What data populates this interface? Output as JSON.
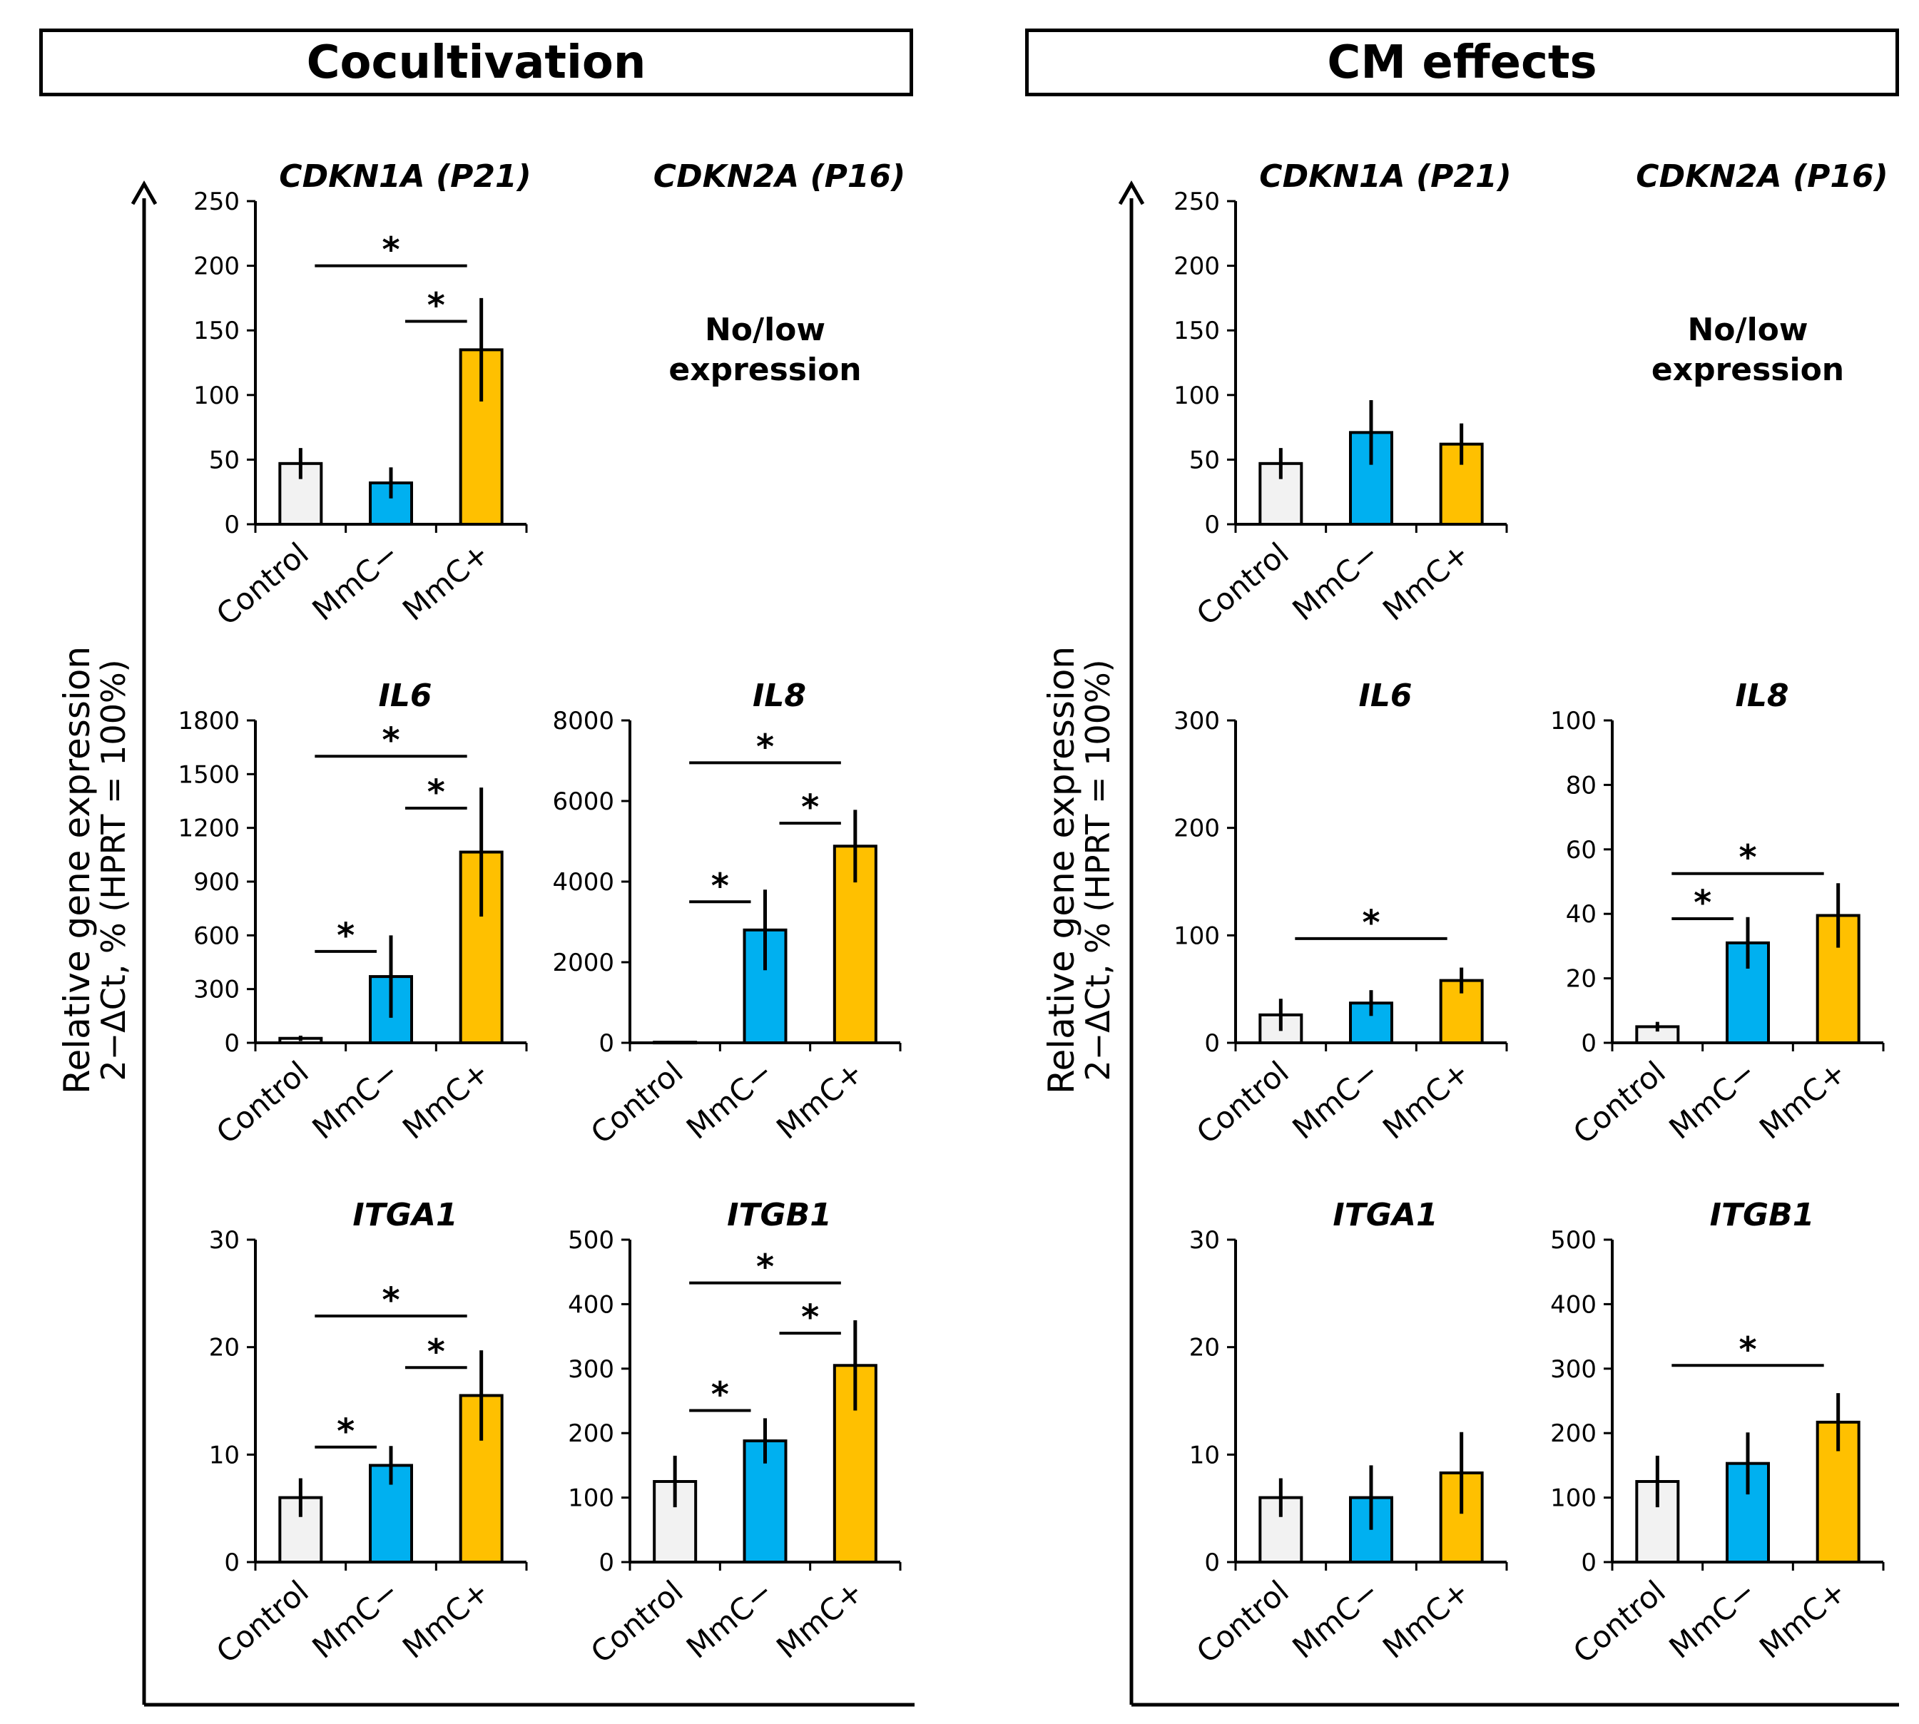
{
  "colors": {
    "control": "#f2f2f2",
    "mmc_minus": "#00b0f0",
    "mmc_plus": "#ffc000",
    "stroke": "#000000"
  },
  "panels": [
    {
      "title": "Cocultivation",
      "y_axis_label": "Relative gene expression",
      "y_axis_formula": "2−ΔCt, % (HPRT = 100%)"
    },
    {
      "title": "CM effects",
      "y_axis_label": "Relative gene expression",
      "y_axis_formula": "2−ΔCt, % (HPRT = 100%)"
    }
  ],
  "no_expression_note": [
    "No/low",
    "expression"
  ],
  "chart_data": [
    {
      "panel": "Cocultivation",
      "type": "bar",
      "title": "CDKN1A (P21)",
      "categories": [
        "Control",
        "MmC−",
        "MmC+"
      ],
      "values": [
        47,
        32,
        135
      ],
      "errors": [
        12,
        12,
        40
      ],
      "ylim": [
        0,
        250
      ],
      "yticks": [
        0,
        50,
        100,
        150,
        200,
        250
      ],
      "significance": [
        {
          "from": 0,
          "to": 2,
          "label": "*",
          "y": 200
        },
        {
          "from": 1,
          "to": 2,
          "label": "*",
          "y": 157
        }
      ]
    },
    {
      "panel": "Cocultivation",
      "type": "bar",
      "title": "CDKN2A (P16)",
      "categories": [],
      "values": [],
      "note": "No/low expression"
    },
    {
      "panel": "Cocultivation",
      "type": "bar",
      "title": "IL6",
      "categories": [
        "Control",
        "MmC−",
        "MmC+"
      ],
      "values": [
        25,
        370,
        1065
      ],
      "errors": [
        15,
        230,
        360
      ],
      "ylim": [
        0,
        1800
      ],
      "yticks": [
        0,
        300,
        600,
        900,
        1200,
        1500,
        1800
      ],
      "significance": [
        {
          "from": 0,
          "to": 2,
          "label": "*",
          "y": 1600
        },
        {
          "from": 1,
          "to": 2,
          "label": "*",
          "y": 1310
        },
        {
          "from": 0,
          "to": 1,
          "label": "*",
          "y": 510
        }
      ]
    },
    {
      "panel": "Cocultivation",
      "type": "bar",
      "title": "IL8",
      "categories": [
        "Control",
        "MmC−",
        "MmC+"
      ],
      "values": [
        15,
        2800,
        4880
      ],
      "errors": [
        0,
        1000,
        900
      ],
      "ylim": [
        0,
        8000
      ],
      "yticks": [
        0,
        2000,
        4000,
        6000,
        8000
      ],
      "significance": [
        {
          "from": 0,
          "to": 2,
          "label": "*",
          "y": 6950
        },
        {
          "from": 1,
          "to": 2,
          "label": "*",
          "y": 5450
        },
        {
          "from": 0,
          "to": 1,
          "label": "*",
          "y": 3500
        }
      ]
    },
    {
      "panel": "Cocultivation",
      "type": "bar",
      "title": "ITGA1",
      "categories": [
        "Control",
        "MmC−",
        "MmC+"
      ],
      "values": [
        6,
        9,
        15.5
      ],
      "errors": [
        1.8,
        1.8,
        4.2
      ],
      "ylim": [
        0,
        30
      ],
      "yticks": [
        0,
        10,
        20,
        30
      ],
      "significance": [
        {
          "from": 0,
          "to": 2,
          "label": "*",
          "y": 22.9
        },
        {
          "from": 1,
          "to": 2,
          "label": "*",
          "y": 18.1
        },
        {
          "from": 0,
          "to": 1,
          "label": "*",
          "y": 10.7
        }
      ]
    },
    {
      "panel": "Cocultivation",
      "type": "bar",
      "title": "ITGB1",
      "categories": [
        "Control",
        "MmC−",
        "MmC+"
      ],
      "values": [
        125,
        188,
        305
      ],
      "errors": [
        40,
        35,
        70
      ],
      "ylim": [
        0,
        500
      ],
      "yticks": [
        0,
        100,
        200,
        300,
        400,
        500
      ],
      "significance": [
        {
          "from": 0,
          "to": 2,
          "label": "*",
          "y": 433
        },
        {
          "from": 1,
          "to": 2,
          "label": "*",
          "y": 355
        },
        {
          "from": 0,
          "to": 1,
          "label": "*",
          "y": 235
        }
      ]
    },
    {
      "panel": "CM effects",
      "type": "bar",
      "title": "CDKN1A (P21)",
      "categories": [
        "Control",
        "MmC−",
        "MmC+"
      ],
      "values": [
        47,
        71,
        62
      ],
      "errors": [
        12,
        25,
        16
      ],
      "ylim": [
        0,
        250
      ],
      "yticks": [
        0,
        50,
        100,
        150,
        200,
        250
      ],
      "significance": []
    },
    {
      "panel": "CM effects",
      "type": "bar",
      "title": "CDKN2A (P16)",
      "categories": [],
      "values": [],
      "note": "No/low expression"
    },
    {
      "panel": "CM effects",
      "type": "bar",
      "title": "IL6",
      "categories": [
        "Control",
        "MmC−",
        "MmC+"
      ],
      "values": [
        26,
        37,
        58
      ],
      "errors": [
        15,
        12,
        12
      ],
      "ylim": [
        0,
        300
      ],
      "yticks": [
        0,
        100,
        200,
        300
      ],
      "significance": [
        {
          "from": 0,
          "to": 2,
          "label": "*",
          "y": 97
        }
      ]
    },
    {
      "panel": "CM effects",
      "type": "bar",
      "title": "IL8",
      "categories": [
        "Control",
        "MmC−",
        "MmC+"
      ],
      "values": [
        5,
        31,
        39.5
      ],
      "errors": [
        1.5,
        8,
        10
      ],
      "ylim": [
        0,
        100
      ],
      "yticks": [
        0,
        20,
        40,
        60,
        80,
        100
      ],
      "significance": [
        {
          "from": 0,
          "to": 2,
          "label": "*",
          "y": 52.5
        },
        {
          "from": 0,
          "to": 1,
          "label": "*",
          "y": 38.5
        }
      ]
    },
    {
      "panel": "CM effects",
      "type": "bar",
      "title": "ITGA1",
      "categories": [
        "Control",
        "MmC−",
        "MmC+"
      ],
      "values": [
        6,
        6,
        8.3
      ],
      "errors": [
        1.8,
        3,
        3.8
      ],
      "ylim": [
        0,
        30
      ],
      "yticks": [
        0,
        10,
        20,
        30
      ],
      "significance": []
    },
    {
      "panel": "CM effects",
      "type": "bar",
      "title": "ITGB1",
      "categories": [
        "Control",
        "MmC−",
        "MmC+"
      ],
      "values": [
        125,
        153,
        217
      ],
      "errors": [
        40,
        48,
        45
      ],
      "ylim": [
        0,
        500
      ],
      "yticks": [
        0,
        100,
        200,
        300,
        400,
        500
      ],
      "significance": [
        {
          "from": 0,
          "to": 2,
          "label": "*",
          "y": 305
        }
      ]
    }
  ]
}
